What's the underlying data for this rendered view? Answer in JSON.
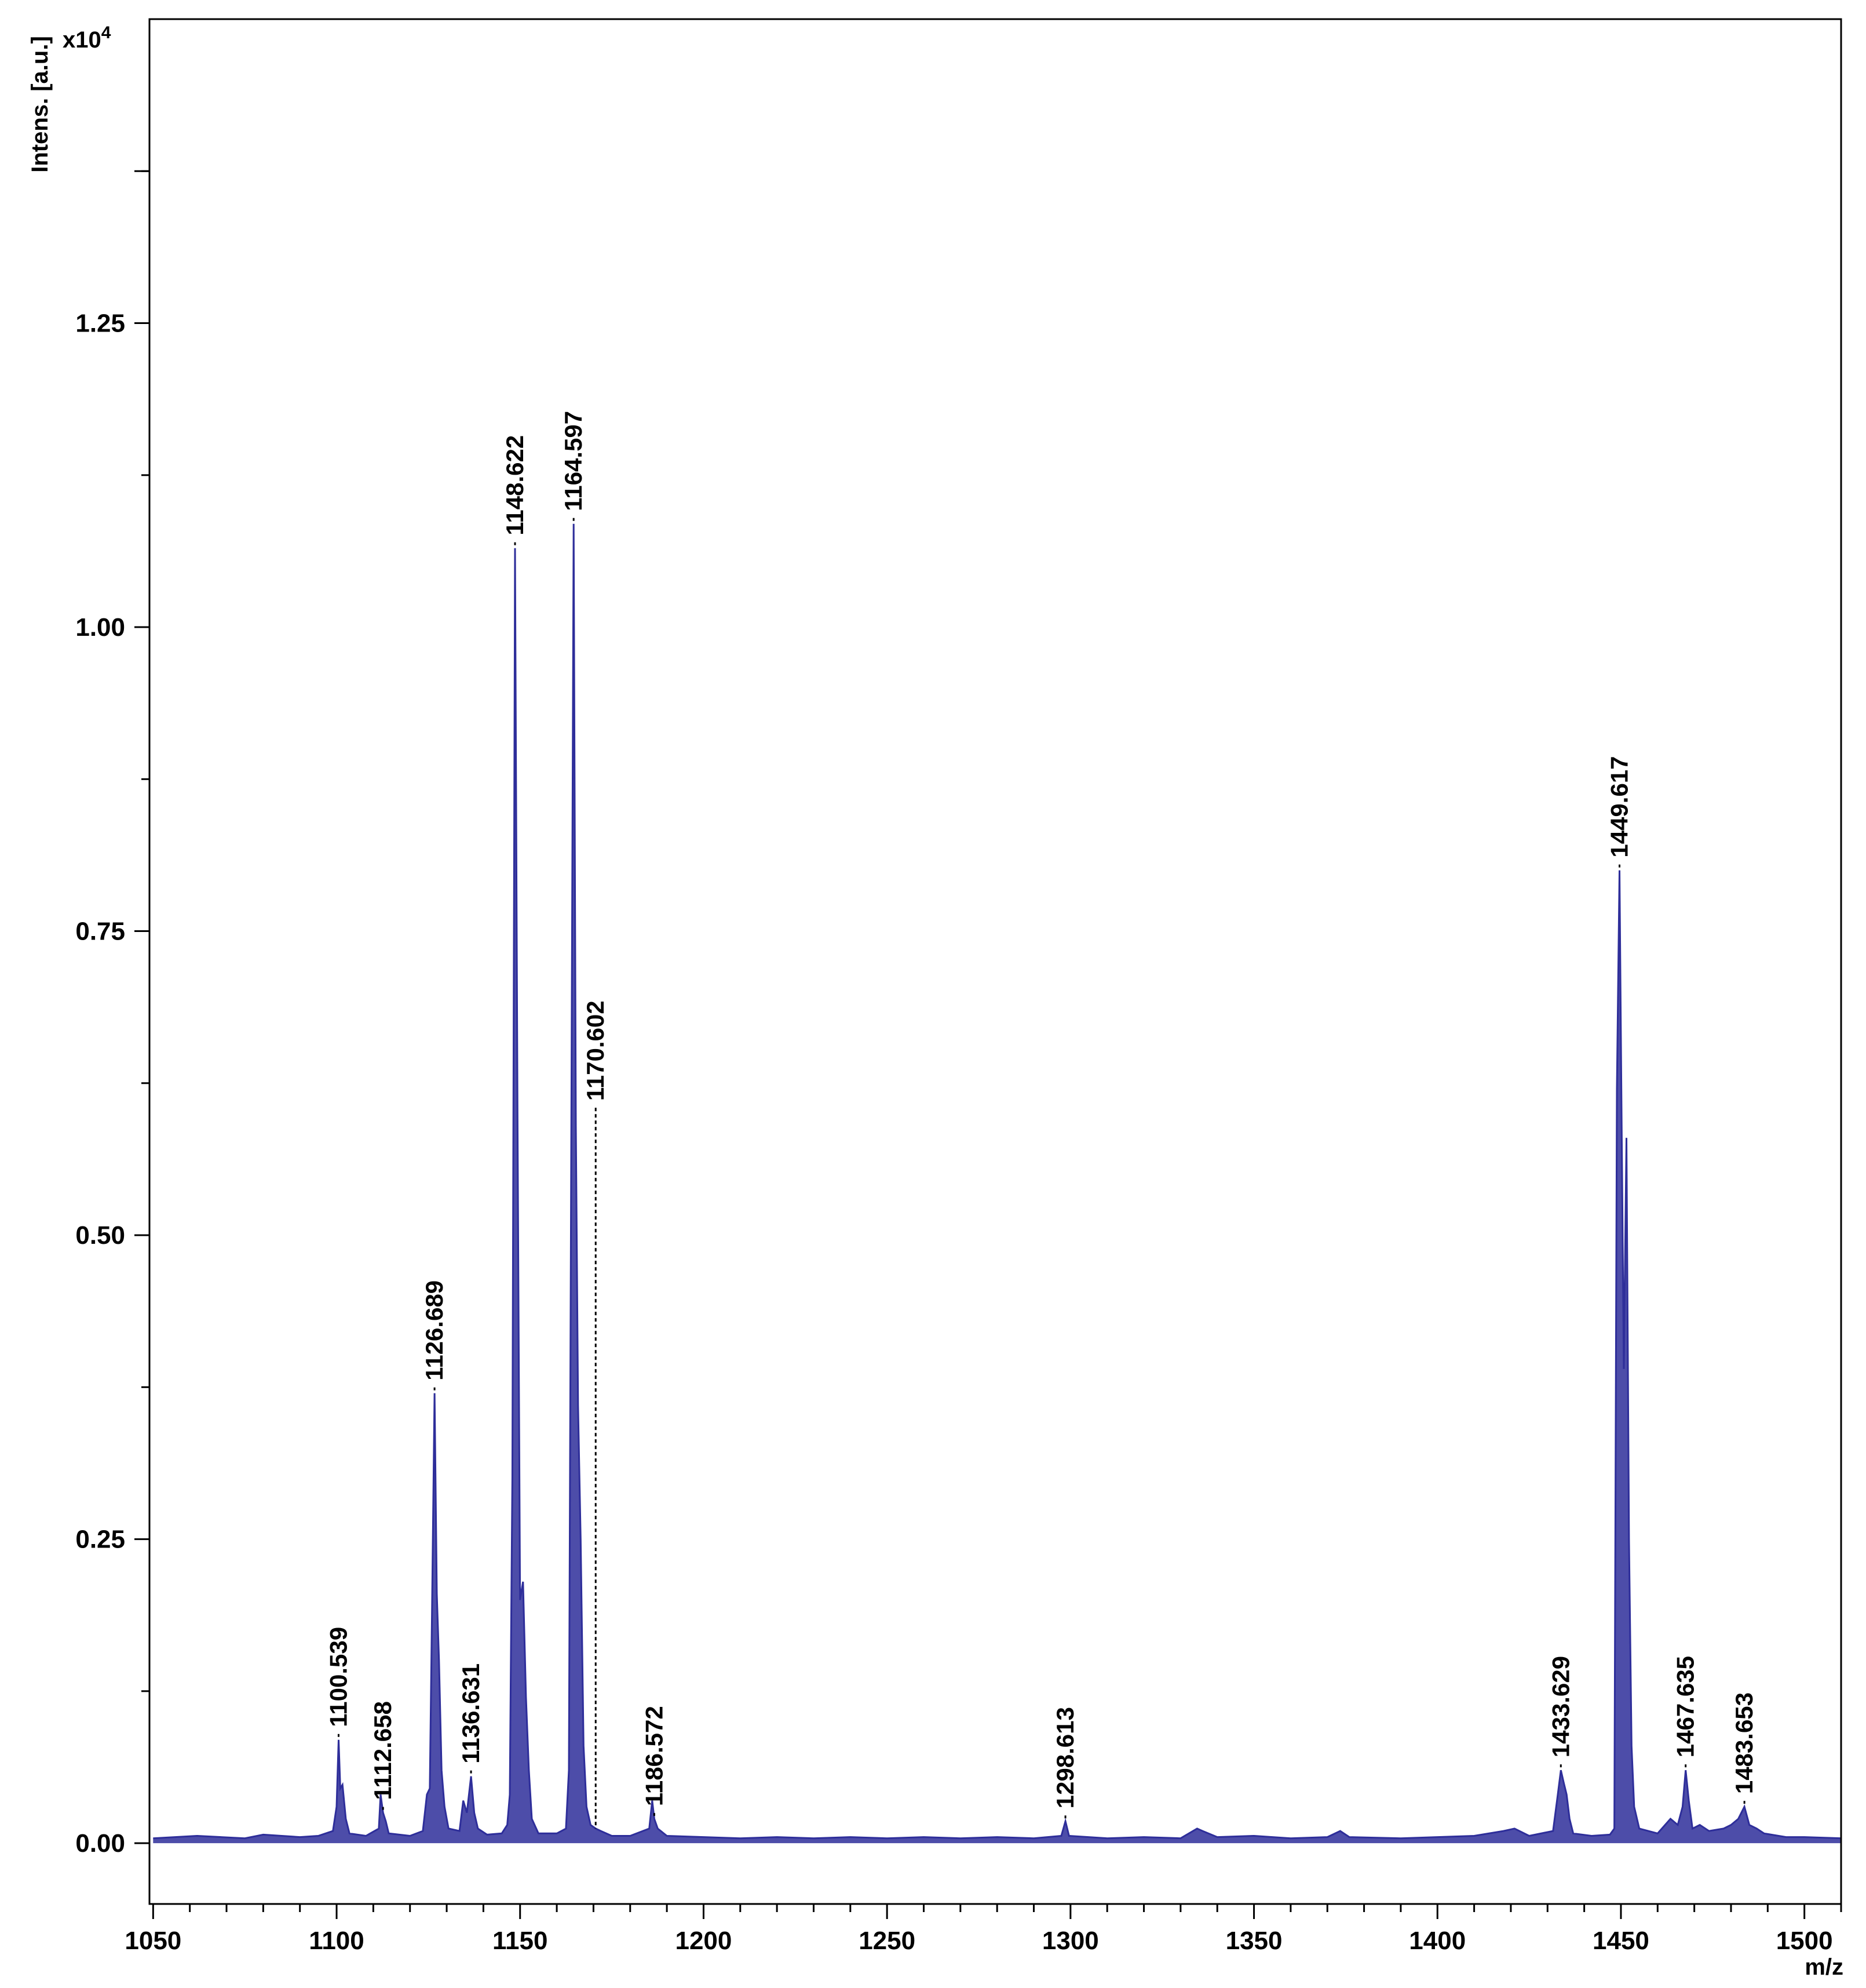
{
  "chart_data": {
    "type": "line",
    "ylabel": "Intens. [a.u.]",
    "xlabel": "m/z",
    "y_scale_note": "x10",
    "y_scale_exponent": "4",
    "xlim": [
      1049,
      1510
    ],
    "ylim": [
      -0.05,
      1.5
    ],
    "x_ticks": [
      1050,
      1100,
      1150,
      1200,
      1250,
      1300,
      1350,
      1400,
      1450,
      1500
    ],
    "x_tick_labels": [
      "1050",
      "1100",
      "1150",
      "1200",
      "1250",
      "1300",
      "1350",
      "1400",
      "1450",
      "1500"
    ],
    "y_ticks": [
      0,
      0.25,
      0.5,
      0.75,
      1.0,
      1.25
    ],
    "y_tick_labels": [
      "0.00",
      "0.25",
      "0.50",
      "0.75",
      "1.00",
      "1.25"
    ],
    "grid": false,
    "line_color": "#2e2e9a",
    "series": [
      {
        "points": [
          [
            1050,
            0.004
          ],
          [
            1062,
            0.006
          ],
          [
            1075,
            0.004
          ],
          [
            1080,
            0.007
          ],
          [
            1090,
            0.005
          ],
          [
            1095,
            0.006
          ],
          [
            1099,
            0.01
          ],
          [
            1100.0,
            0.03
          ],
          [
            1100.539,
            0.085
          ],
          [
            1101.0,
            0.045
          ],
          [
            1101.6,
            0.048
          ],
          [
            1102.5,
            0.02
          ],
          [
            1103.5,
            0.008
          ],
          [
            1108,
            0.006
          ],
          [
            1111.5,
            0.012
          ],
          [
            1112.0,
            0.04
          ],
          [
            1112.658,
            0.025
          ],
          [
            1113.4,
            0.018
          ],
          [
            1114.2,
            0.008
          ],
          [
            1120,
            0.006
          ],
          [
            1123.5,
            0.01
          ],
          [
            1124.6,
            0.04
          ],
          [
            1125.4,
            0.045
          ],
          [
            1126.0,
            0.19
          ],
          [
            1126.689,
            0.37
          ],
          [
            1127.3,
            0.205
          ],
          [
            1127.9,
            0.15
          ],
          [
            1128.6,
            0.06
          ],
          [
            1129.4,
            0.03
          ],
          [
            1130.5,
            0.012
          ],
          [
            1133.5,
            0.01
          ],
          [
            1134.5,
            0.035
          ],
          [
            1135.5,
            0.025
          ],
          [
            1136.631,
            0.055
          ],
          [
            1137.5,
            0.025
          ],
          [
            1138.5,
            0.012
          ],
          [
            1141,
            0.007
          ],
          [
            1145,
            0.008
          ],
          [
            1146.5,
            0.015
          ],
          [
            1147.2,
            0.04
          ],
          [
            1147.9,
            0.3
          ],
          [
            1148.622,
            1.065
          ],
          [
            1149.3,
            0.6
          ],
          [
            1150.0,
            0.2
          ],
          [
            1150.8,
            0.215
          ],
          [
            1151.6,
            0.12
          ],
          [
            1152.4,
            0.06
          ],
          [
            1153.2,
            0.02
          ],
          [
            1155,
            0.008
          ],
          [
            1160,
            0.008
          ],
          [
            1162.5,
            0.012
          ],
          [
            1163.3,
            0.06
          ],
          [
            1163.9,
            0.54
          ],
          [
            1164.597,
            1.085
          ],
          [
            1165.2,
            0.59
          ],
          [
            1165.8,
            0.36
          ],
          [
            1166.5,
            0.25
          ],
          [
            1167.3,
            0.08
          ],
          [
            1168.1,
            0.03
          ],
          [
            1169.2,
            0.015
          ],
          [
            1170.602,
            0.012
          ],
          [
            1172,
            0.01
          ],
          [
            1175,
            0.006
          ],
          [
            1180,
            0.006
          ],
          [
            1185.2,
            0.012
          ],
          [
            1186.0,
            0.035
          ],
          [
            1186.572,
            0.02
          ],
          [
            1187.5,
            0.012
          ],
          [
            1190,
            0.006
          ],
          [
            1200,
            0.005
          ],
          [
            1210,
            0.004
          ],
          [
            1220,
            0.005
          ],
          [
            1230,
            0.004
          ],
          [
            1240,
            0.005
          ],
          [
            1250,
            0.004
          ],
          [
            1260,
            0.005
          ],
          [
            1270,
            0.004
          ],
          [
            1280,
            0.005
          ],
          [
            1290,
            0.004
          ],
          [
            1297.5,
            0.006
          ],
          [
            1298.613,
            0.018
          ],
          [
            1299.6,
            0.006
          ],
          [
            1310,
            0.004
          ],
          [
            1320,
            0.005
          ],
          [
            1330,
            0.004
          ],
          [
            1334.5,
            0.012
          ],
          [
            1336,
            0.01
          ],
          [
            1340,
            0.005
          ],
          [
            1350,
            0.006
          ],
          [
            1360,
            0.004
          ],
          [
            1370,
            0.005
          ],
          [
            1373.5,
            0.01
          ],
          [
            1376,
            0.005
          ],
          [
            1390,
            0.004
          ],
          [
            1400,
            0.005
          ],
          [
            1410,
            0.006
          ],
          [
            1418,
            0.01
          ],
          [
            1421,
            0.012
          ],
          [
            1425,
            0.006
          ],
          [
            1431.5,
            0.01
          ],
          [
            1432.8,
            0.04
          ],
          [
            1433.629,
            0.06
          ],
          [
            1434.4,
            0.05
          ],
          [
            1435.2,
            0.04
          ],
          [
            1436.0,
            0.02
          ],
          [
            1437.0,
            0.008
          ],
          [
            1442,
            0.006
          ],
          [
            1447,
            0.007
          ],
          [
            1448.2,
            0.012
          ],
          [
            1448.9,
            0.62
          ],
          [
            1449.617,
            0.8
          ],
          [
            1450.2,
            0.59
          ],
          [
            1450.8,
            0.39
          ],
          [
            1451.5,
            0.58
          ],
          [
            1452.2,
            0.25
          ],
          [
            1452.9,
            0.08
          ],
          [
            1453.6,
            0.03
          ],
          [
            1455,
            0.012
          ],
          [
            1460,
            0.008
          ],
          [
            1463.5,
            0.02
          ],
          [
            1465.5,
            0.015
          ],
          [
            1466.8,
            0.03
          ],
          [
            1467.635,
            0.06
          ],
          [
            1468.5,
            0.035
          ],
          [
            1469.5,
            0.012
          ],
          [
            1471.5,
            0.015
          ],
          [
            1474,
            0.01
          ],
          [
            1478,
            0.012
          ],
          [
            1480,
            0.015
          ],
          [
            1482,
            0.02
          ],
          [
            1483.653,
            0.03
          ],
          [
            1485,
            0.015
          ],
          [
            1487,
            0.012
          ],
          [
            1489,
            0.008
          ],
          [
            1495,
            0.005
          ],
          [
            1500,
            0.005
          ],
          [
            1510,
            0.004
          ]
        ]
      }
    ],
    "peak_annotations": [
      {
        "x": 1100.539,
        "y": 0.085,
        "label": "1100.539"
      },
      {
        "x": 1112.658,
        "y": 0.025,
        "label": "1112.658"
      },
      {
        "x": 1126.689,
        "y": 0.37,
        "label": "1126.689"
      },
      {
        "x": 1136.631,
        "y": 0.055,
        "label": "1136.631"
      },
      {
        "x": 1148.622,
        "y": 1.065,
        "label": "1148.622"
      },
      {
        "x": 1164.597,
        "y": 1.085,
        "label": "1164.597"
      },
      {
        "x": 1170.602,
        "y": 0.012,
        "label": "1170.602",
        "label_y": 0.6
      },
      {
        "x": 1186.572,
        "y": 0.02,
        "label": "1186.572"
      },
      {
        "x": 1298.613,
        "y": 0.018,
        "label": "1298.613"
      },
      {
        "x": 1433.629,
        "y": 0.06,
        "label": "1433.629"
      },
      {
        "x": 1449.617,
        "y": 0.8,
        "label": "1449.617"
      },
      {
        "x": 1467.635,
        "y": 0.06,
        "label": "1467.635"
      },
      {
        "x": 1483.653,
        "y": 0.03,
        "label": "1483.653"
      }
    ]
  }
}
